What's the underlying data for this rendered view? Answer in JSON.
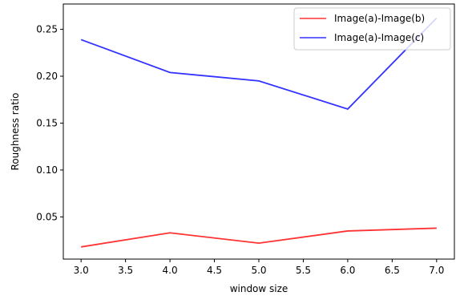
{
  "chart_data": {
    "type": "line",
    "xlabel": "window size",
    "ylabel": "Roughness ratio",
    "xlim": [
      2.8,
      7.2
    ],
    "ylim": [
      0.005,
      0.277
    ],
    "xticks": [
      "3.0",
      "3.5",
      "4.0",
      "4.5",
      "5.0",
      "5.5",
      "6.0",
      "6.5",
      "7.0"
    ],
    "yticks": [
      "0.05",
      "0.10",
      "0.15",
      "0.20",
      "0.25"
    ],
    "grid": false,
    "legend_position": "top-right",
    "series": [
      {
        "name": "Image(a)-Image(b)",
        "color": "#ff3333",
        "x": [
          3,
          4,
          5,
          6,
          7
        ],
        "y": [
          0.018,
          0.033,
          0.022,
          0.035,
          0.038
        ]
      },
      {
        "name": "Image(a)-Image(c)",
        "color": "#3333ff",
        "x": [
          3,
          4,
          5,
          6,
          7
        ],
        "y": [
          0.239,
          0.204,
          0.195,
          0.165,
          0.262
        ]
      }
    ]
  }
}
